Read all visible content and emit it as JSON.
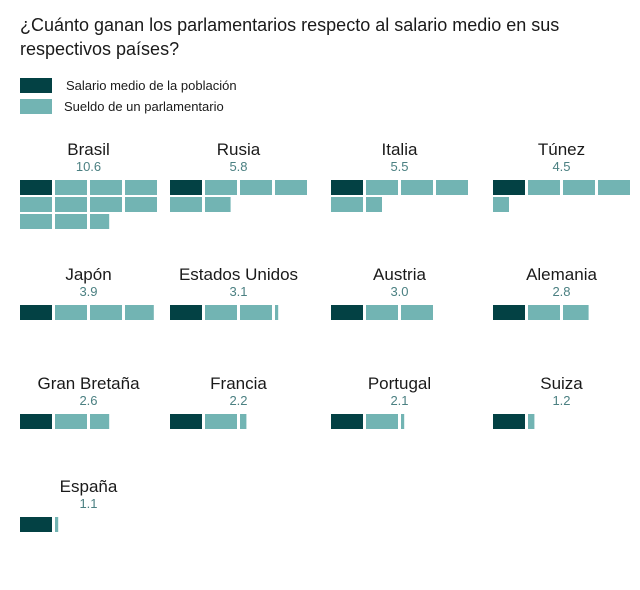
{
  "chart_data": {
    "type": "pictogram",
    "title": "¿Cuánto ganan los parlamentarios respecto al salario medio en sus respectivos países?",
    "unit_note": "Each block = 1 average salary; total blocks = parliamentarian salary / average salary",
    "legend": [
      {
        "label": "Salario medio de la población",
        "color": "#034144"
      },
      {
        "label": "Sueldo de un parlamentario",
        "color": "#72b4b3"
      }
    ],
    "colors": {
      "base": "#034144",
      "extra": "#72b4b3",
      "value_text": "#4b8082"
    },
    "blocks_per_row": 4,
    "countries": [
      {
        "name": "Brasil",
        "value": 10.6,
        "label": "10.6"
      },
      {
        "name": "Rusia",
        "value": 5.8,
        "label": "5.8"
      },
      {
        "name": "Italia",
        "value": 5.5,
        "label": "5.5"
      },
      {
        "name": "Túnez",
        "value": 4.5,
        "label": "4.5"
      },
      {
        "name": "Japón",
        "value": 3.9,
        "label": "3.9"
      },
      {
        "name": "Estados Unidos",
        "value": 3.1,
        "label": "3.1"
      },
      {
        "name": "Austria",
        "value": 3.0,
        "label": "3.0"
      },
      {
        "name": "Alemania",
        "value": 2.8,
        "label": "2.8"
      },
      {
        "name": "Gran Bretaña",
        "value": 2.6,
        "label": "2.6"
      },
      {
        "name": "Francia",
        "value": 2.2,
        "label": "2.2"
      },
      {
        "name": "Portugal",
        "value": 2.1,
        "label": "2.1"
      },
      {
        "name": "Suiza",
        "value": 1.2,
        "label": "1.2"
      },
      {
        "name": "España",
        "value": 1.1,
        "label": "1.1"
      }
    ]
  }
}
